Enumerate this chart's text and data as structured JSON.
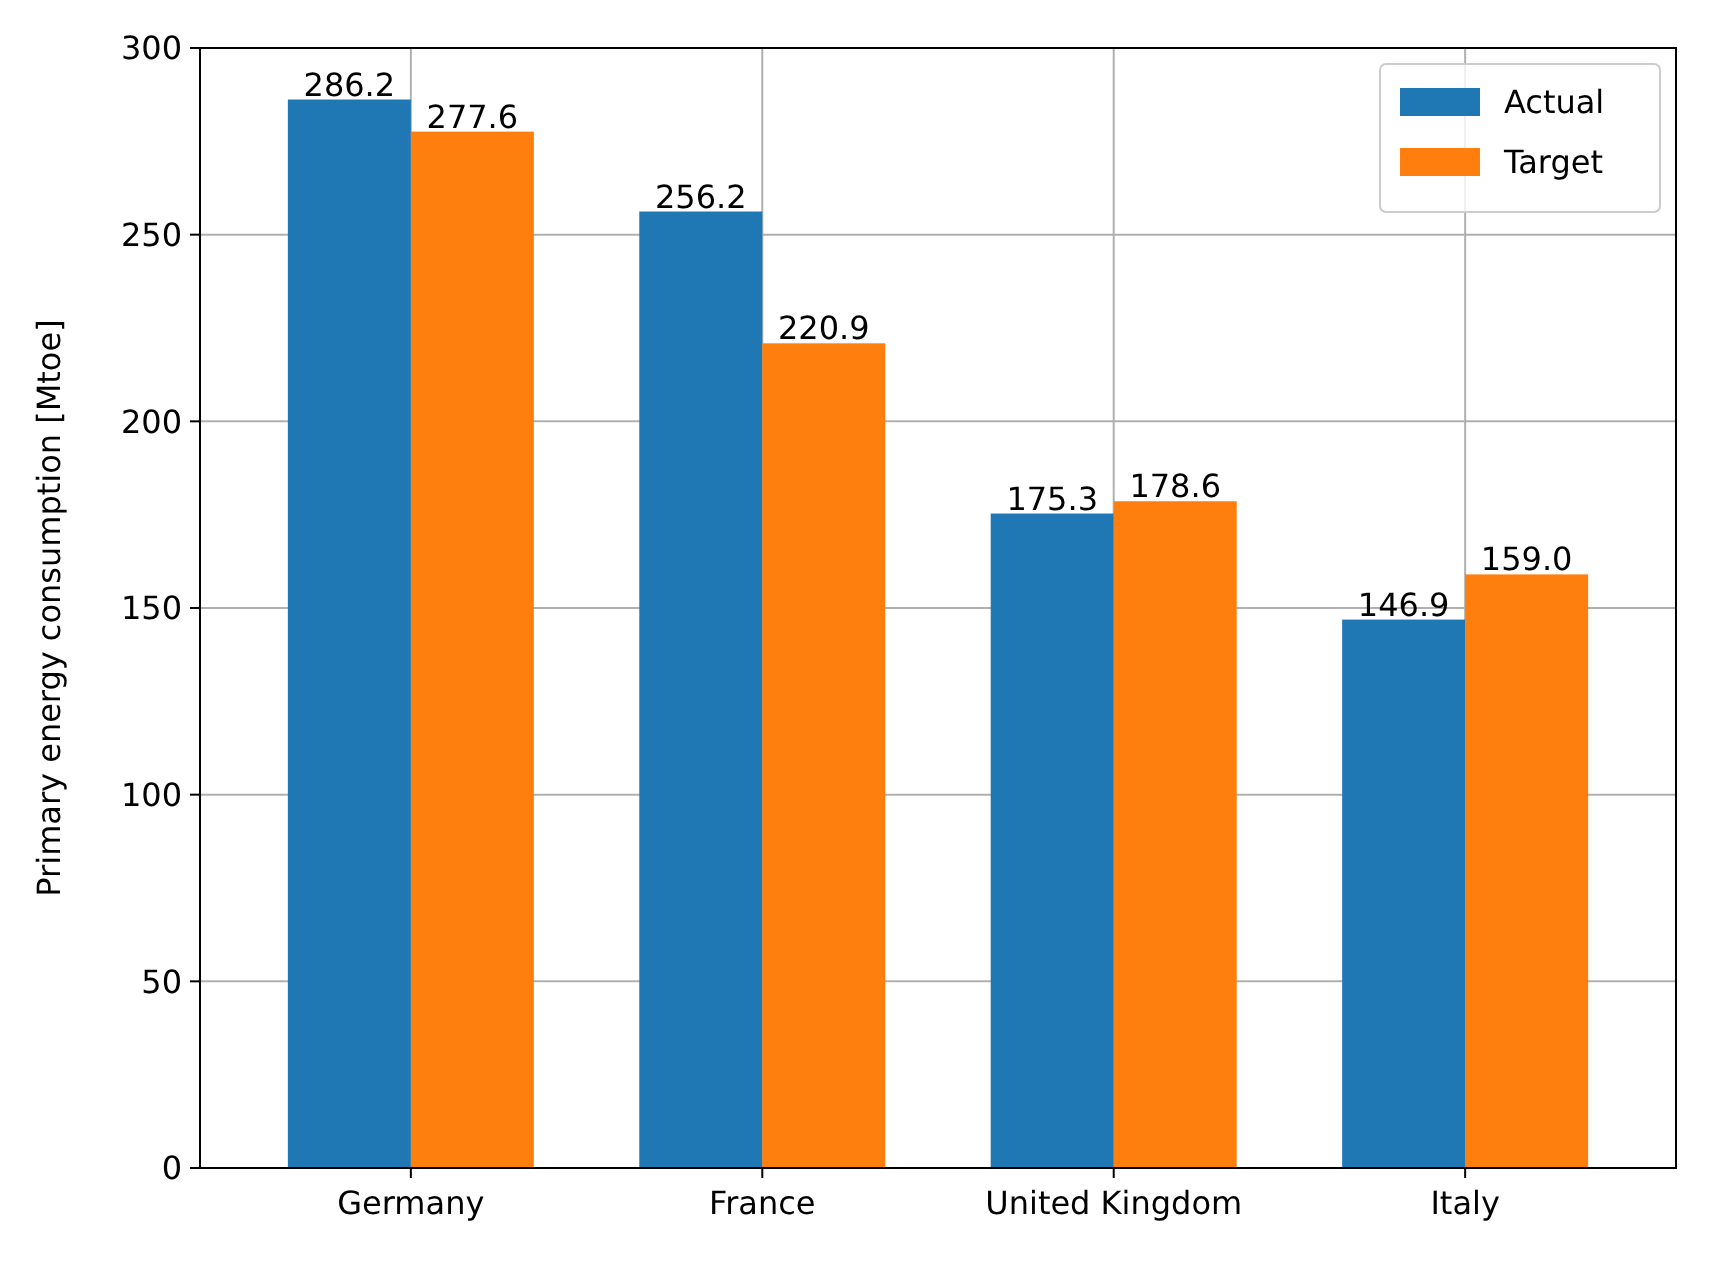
{
  "chart_data": {
    "type": "bar",
    "ylabel": "Primary energy consumption [Mtoe]",
    "categories": [
      "Germany",
      "France",
      "United Kingdom",
      "Italy"
    ],
    "series": [
      {
        "name": "Actual",
        "color": "#1f77b4",
        "values": [
          286.2,
          256.2,
          175.3,
          146.9
        ]
      },
      {
        "name": "Target",
        "color": "#ff7f0e",
        "values": [
          277.6,
          220.9,
          178.6,
          159.0
        ]
      }
    ],
    "value_labels": [
      [
        "286.2",
        "256.2",
        "175.3",
        "146.9"
      ],
      [
        "277.6",
        "220.9",
        "178.6",
        "159.0"
      ]
    ],
    "ylim": [
      0,
      300
    ],
    "yticks": [
      0,
      50,
      100,
      150,
      200,
      250,
      300
    ],
    "grid": true,
    "legend": "top right"
  }
}
